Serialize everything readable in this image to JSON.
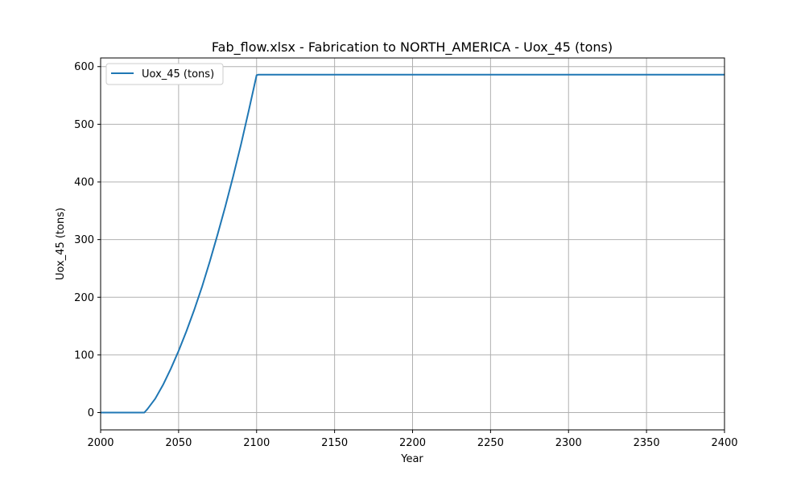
{
  "chart_data": {
    "type": "line",
    "title": "Fab_flow.xlsx - Fabrication to NORTH_AMERICA - Uox_45 (tons)",
    "xlabel": "Year",
    "ylabel": "Uox_45 (tons)",
    "xlim": [
      2000,
      2400
    ],
    "ylim": [
      -30,
      615
    ],
    "xticks": [
      2000,
      2050,
      2100,
      2150,
      2200,
      2250,
      2300,
      2350,
      2400
    ],
    "yticks": [
      0,
      100,
      200,
      300,
      400,
      500,
      600
    ],
    "grid": true,
    "legend_position": "top-left",
    "series": [
      {
        "name": "Uox_45 (tons)",
        "color": "#1f77b4",
        "x": [
          2000,
          2028,
          2030,
          2035,
          2040,
          2045,
          2050,
          2055,
          2060,
          2065,
          2070,
          2075,
          2080,
          2085,
          2090,
          2095,
          2100,
          2101,
          2150,
          2200,
          2250,
          2300,
          2350,
          2400
        ],
        "y": [
          0,
          0,
          6,
          24,
          48,
          76,
          107,
          141,
          178,
          218,
          262,
          309,
          358,
          410,
          465,
          524,
          585,
          586,
          586,
          586,
          586,
          586,
          586,
          586
        ]
      }
    ]
  }
}
